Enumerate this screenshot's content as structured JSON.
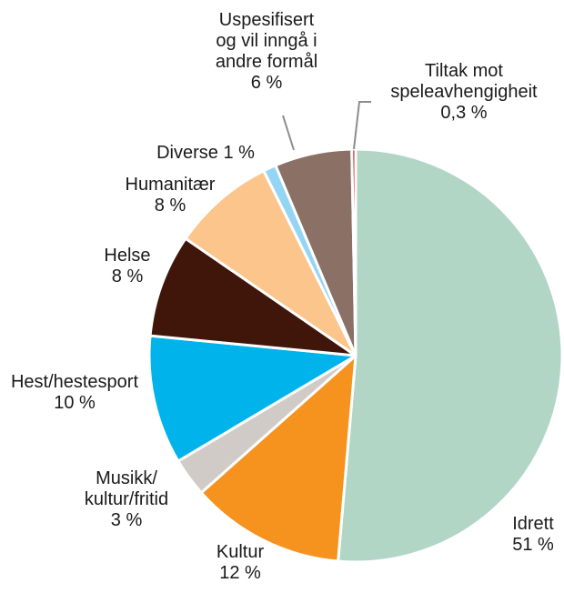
{
  "chart_data": {
    "type": "pie",
    "title": "",
    "slices": [
      {
        "name": "Idrett",
        "value": 51,
        "label_lines": [
          "Idrett",
          "51 %"
        ],
        "color": "#b2d6c6"
      },
      {
        "name": "Kultur",
        "value": 12,
        "label_lines": [
          "Kultur",
          "12 %"
        ],
        "color": "#f6921e"
      },
      {
        "name": "Musikk/kultur/fritid",
        "value": 3,
        "label_lines": [
          "Musikk/",
          "kultur/fritid",
          "3 %"
        ],
        "color": "#d1cbc7"
      },
      {
        "name": "Hest/hestesport",
        "value": 10,
        "label_lines": [
          "Hest/hestesport",
          "10 %"
        ],
        "color": "#00b3ea"
      },
      {
        "name": "Helse",
        "value": 8,
        "label_lines": [
          "Helse",
          "8 %"
        ],
        "color": "#3f1609"
      },
      {
        "name": "Humanitær",
        "value": 8,
        "label_lines": [
          "Humanitær",
          "8 %"
        ],
        "color": "#fbc58b"
      },
      {
        "name": "Diverse",
        "value": 1,
        "label_lines": [
          "Diverse 1 %"
        ],
        "color": "#95d5f4"
      },
      {
        "name": "Uspesifisert og vil inngå i andre formål",
        "value": 6,
        "label_lines": [
          "Uspesifisert",
          "og vil inngå i",
          "andre formål",
          "6 %"
        ],
        "color": "#8b7066"
      },
      {
        "name": "Tiltak mot speleavhengigheit",
        "value": 0.3,
        "label_lines": [
          "Tiltak mot",
          "speleavhengigheit",
          "0,3 %"
        ],
        "color": "#e31b23"
      }
    ]
  }
}
